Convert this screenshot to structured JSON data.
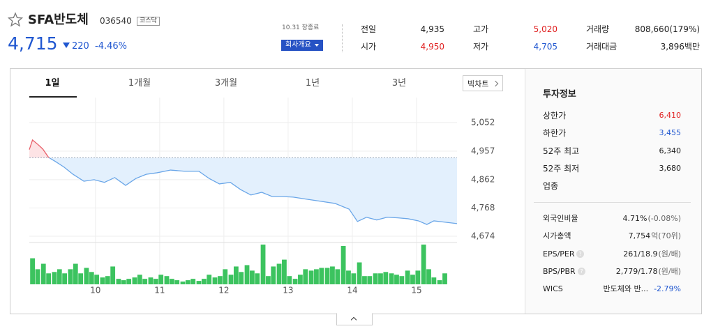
{
  "header": {
    "name": "SFA반도체",
    "code": "036540",
    "market": "코스닥",
    "price": "4,715",
    "change": "220",
    "change_pct": "-4.46%",
    "status": "10.31 장종료",
    "company_button": "회사개요"
  },
  "quote": [
    {
      "label": "전일",
      "value": {
        "value": 4935,
        "label": "4,935"
      }
    },
    {
      "label": "시가",
      "value": {
        "value": 4950,
        "label": "4,950"
      }
    },
    {
      "label": "고가",
      "value": {
        "value": 5020,
        "label": "5,020"
      }
    },
    {
      "label": "저가",
      "value": {
        "value": 4705,
        "label": "4,705"
      }
    },
    {
      "label": "거래량",
      "value": {
        "value": 808660,
        "label": "808,660(179%)"
      }
    },
    {
      "label": "거래대금",
      "value": {
        "value": 3896,
        "label": "3,896백만"
      }
    }
  ],
  "tabs": [
    "1일",
    "1개월",
    "3개월",
    "1년",
    "3년"
  ],
  "big_chart": "빅차트",
  "info": {
    "title": "투자정보",
    "help": "?",
    "rows1": [
      {
        "label": "상한가",
        "value": "6,410"
      },
      {
        "label": "하한가",
        "value": "3,455"
      },
      {
        "label": "52주 최고",
        "value": "6,340"
      },
      {
        "label": "52주 최저",
        "value": "3,680"
      },
      {
        "label": "업종",
        "value": null
      }
    ],
    "rows2": [
      {
        "label": "외국인비율",
        "value": "4.71%",
        "extra": "(-0.08%)"
      },
      {
        "label": "시가총액",
        "value": "7,754",
        "extra": "억(70위)"
      },
      {
        "label": "EPS/PER",
        "value": "261/18.9",
        "extra": "(원/배)"
      },
      {
        "label": "BPS/PBR",
        "value": "2,779/1.78",
        "extra": "(원/배)"
      },
      {
        "label": "WICS",
        "value": "반도체와 반...",
        "extra": "-2.79%"
      }
    ]
  },
  "chart_data": [
    {
      "type": "line",
      "color": "#6aa6e8",
      "up_color": "#e8606a",
      "fill_color": "#e3f0fd",
      "up_fill_color": "#fde3e5",
      "x": [
        8.97,
        9.02,
        9.11,
        9.18,
        9.27,
        9.38,
        9.51,
        9.65,
        9.82,
        9.98,
        10.14,
        10.3,
        10.47,
        10.63,
        10.79,
        10.96,
        11.17,
        11.39,
        11.61,
        11.77,
        11.93,
        12.1,
        12.26,
        12.42,
        12.59,
        12.75,
        12.91,
        13.08,
        13.29,
        13.51,
        13.73,
        13.95,
        14.08,
        14.22,
        14.38,
        14.54,
        14.71,
        14.87,
        15.03,
        15.16,
        15.27,
        15.47,
        15.63
      ],
      "values": [
        4962,
        4994,
        4978,
        4964,
        4936,
        4922,
        4904,
        4880,
        4857,
        4862,
        4853,
        4869,
        4843,
        4866,
        4880,
        4885,
        4894,
        4890,
        4890,
        4866,
        4848,
        4853,
        4829,
        4811,
        4820,
        4806,
        4806,
        4804,
        4797,
        4790,
        4783,
        4764,
        4723,
        4737,
        4728,
        4737,
        4735,
        4732,
        4725,
        4713,
        4725,
        4720,
        4716
      ],
      "xlim": [
        8.97,
        15.63
      ],
      "xticks": [
        10,
        11,
        12,
        13,
        14,
        15
      ],
      "ylim": [
        4660,
        5112
      ],
      "yticks": [
        {
          "value": 5052,
          "label": "5,052"
        },
        {
          "value": 4957,
          "label": "4,957"
        },
        {
          "value": 4862,
          "label": "4,862"
        },
        {
          "value": 4768,
          "label": "4,768"
        },
        {
          "value": 4674,
          "label": "4,674"
        }
      ],
      "grid": true
    },
    {
      "type": "bar",
      "color": "#3cc35f",
      "xlim": [
        8.97,
        15.63
      ],
      "ylim": [
        0,
        60
      ],
      "x": [
        9.02,
        9.1,
        9.19,
        9.27,
        9.36,
        9.44,
        9.52,
        9.61,
        9.69,
        9.77,
        9.86,
        9.94,
        10.02,
        10.11,
        10.19,
        10.27,
        10.36,
        10.44,
        10.52,
        10.61,
        10.69,
        10.77,
        10.86,
        10.94,
        11.02,
        11.11,
        11.19,
        11.27,
        11.36,
        11.44,
        11.52,
        11.61,
        11.69,
        11.77,
        11.86,
        11.94,
        12.02,
        12.11,
        12.19,
        12.27,
        12.36,
        12.44,
        12.52,
        12.61,
        12.69,
        12.77,
        12.86,
        12.94,
        13.02,
        13.11,
        13.19,
        13.27,
        13.36,
        13.44,
        13.52,
        13.61,
        13.69,
        13.77,
        13.86,
        13.94,
        14.02,
        14.11,
        14.19,
        14.27,
        14.36,
        14.44,
        14.52,
        14.61,
        14.69,
        14.77,
        14.86,
        14.94,
        15.02,
        15.11,
        15.19,
        15.27,
        15.36,
        15.44
      ],
      "values": [
        38,
        22,
        30,
        16,
        18,
        22,
        16,
        22,
        30,
        16,
        24,
        18,
        14,
        10,
        12,
        26,
        8,
        6,
        8,
        10,
        14,
        8,
        10,
        8,
        14,
        12,
        8,
        6,
        4,
        6,
        8,
        5,
        8,
        14,
        10,
        12,
        22,
        14,
        26,
        18,
        28,
        20,
        16,
        58,
        12,
        26,
        30,
        36,
        12,
        8,
        14,
        22,
        20,
        22,
        24,
        24,
        26,
        22,
        56,
        20,
        16,
        32,
        12,
        12,
        16,
        16,
        18,
        16,
        14,
        12,
        20,
        14,
        20,
        58,
        22,
        10,
        6,
        16
      ]
    }
  ]
}
